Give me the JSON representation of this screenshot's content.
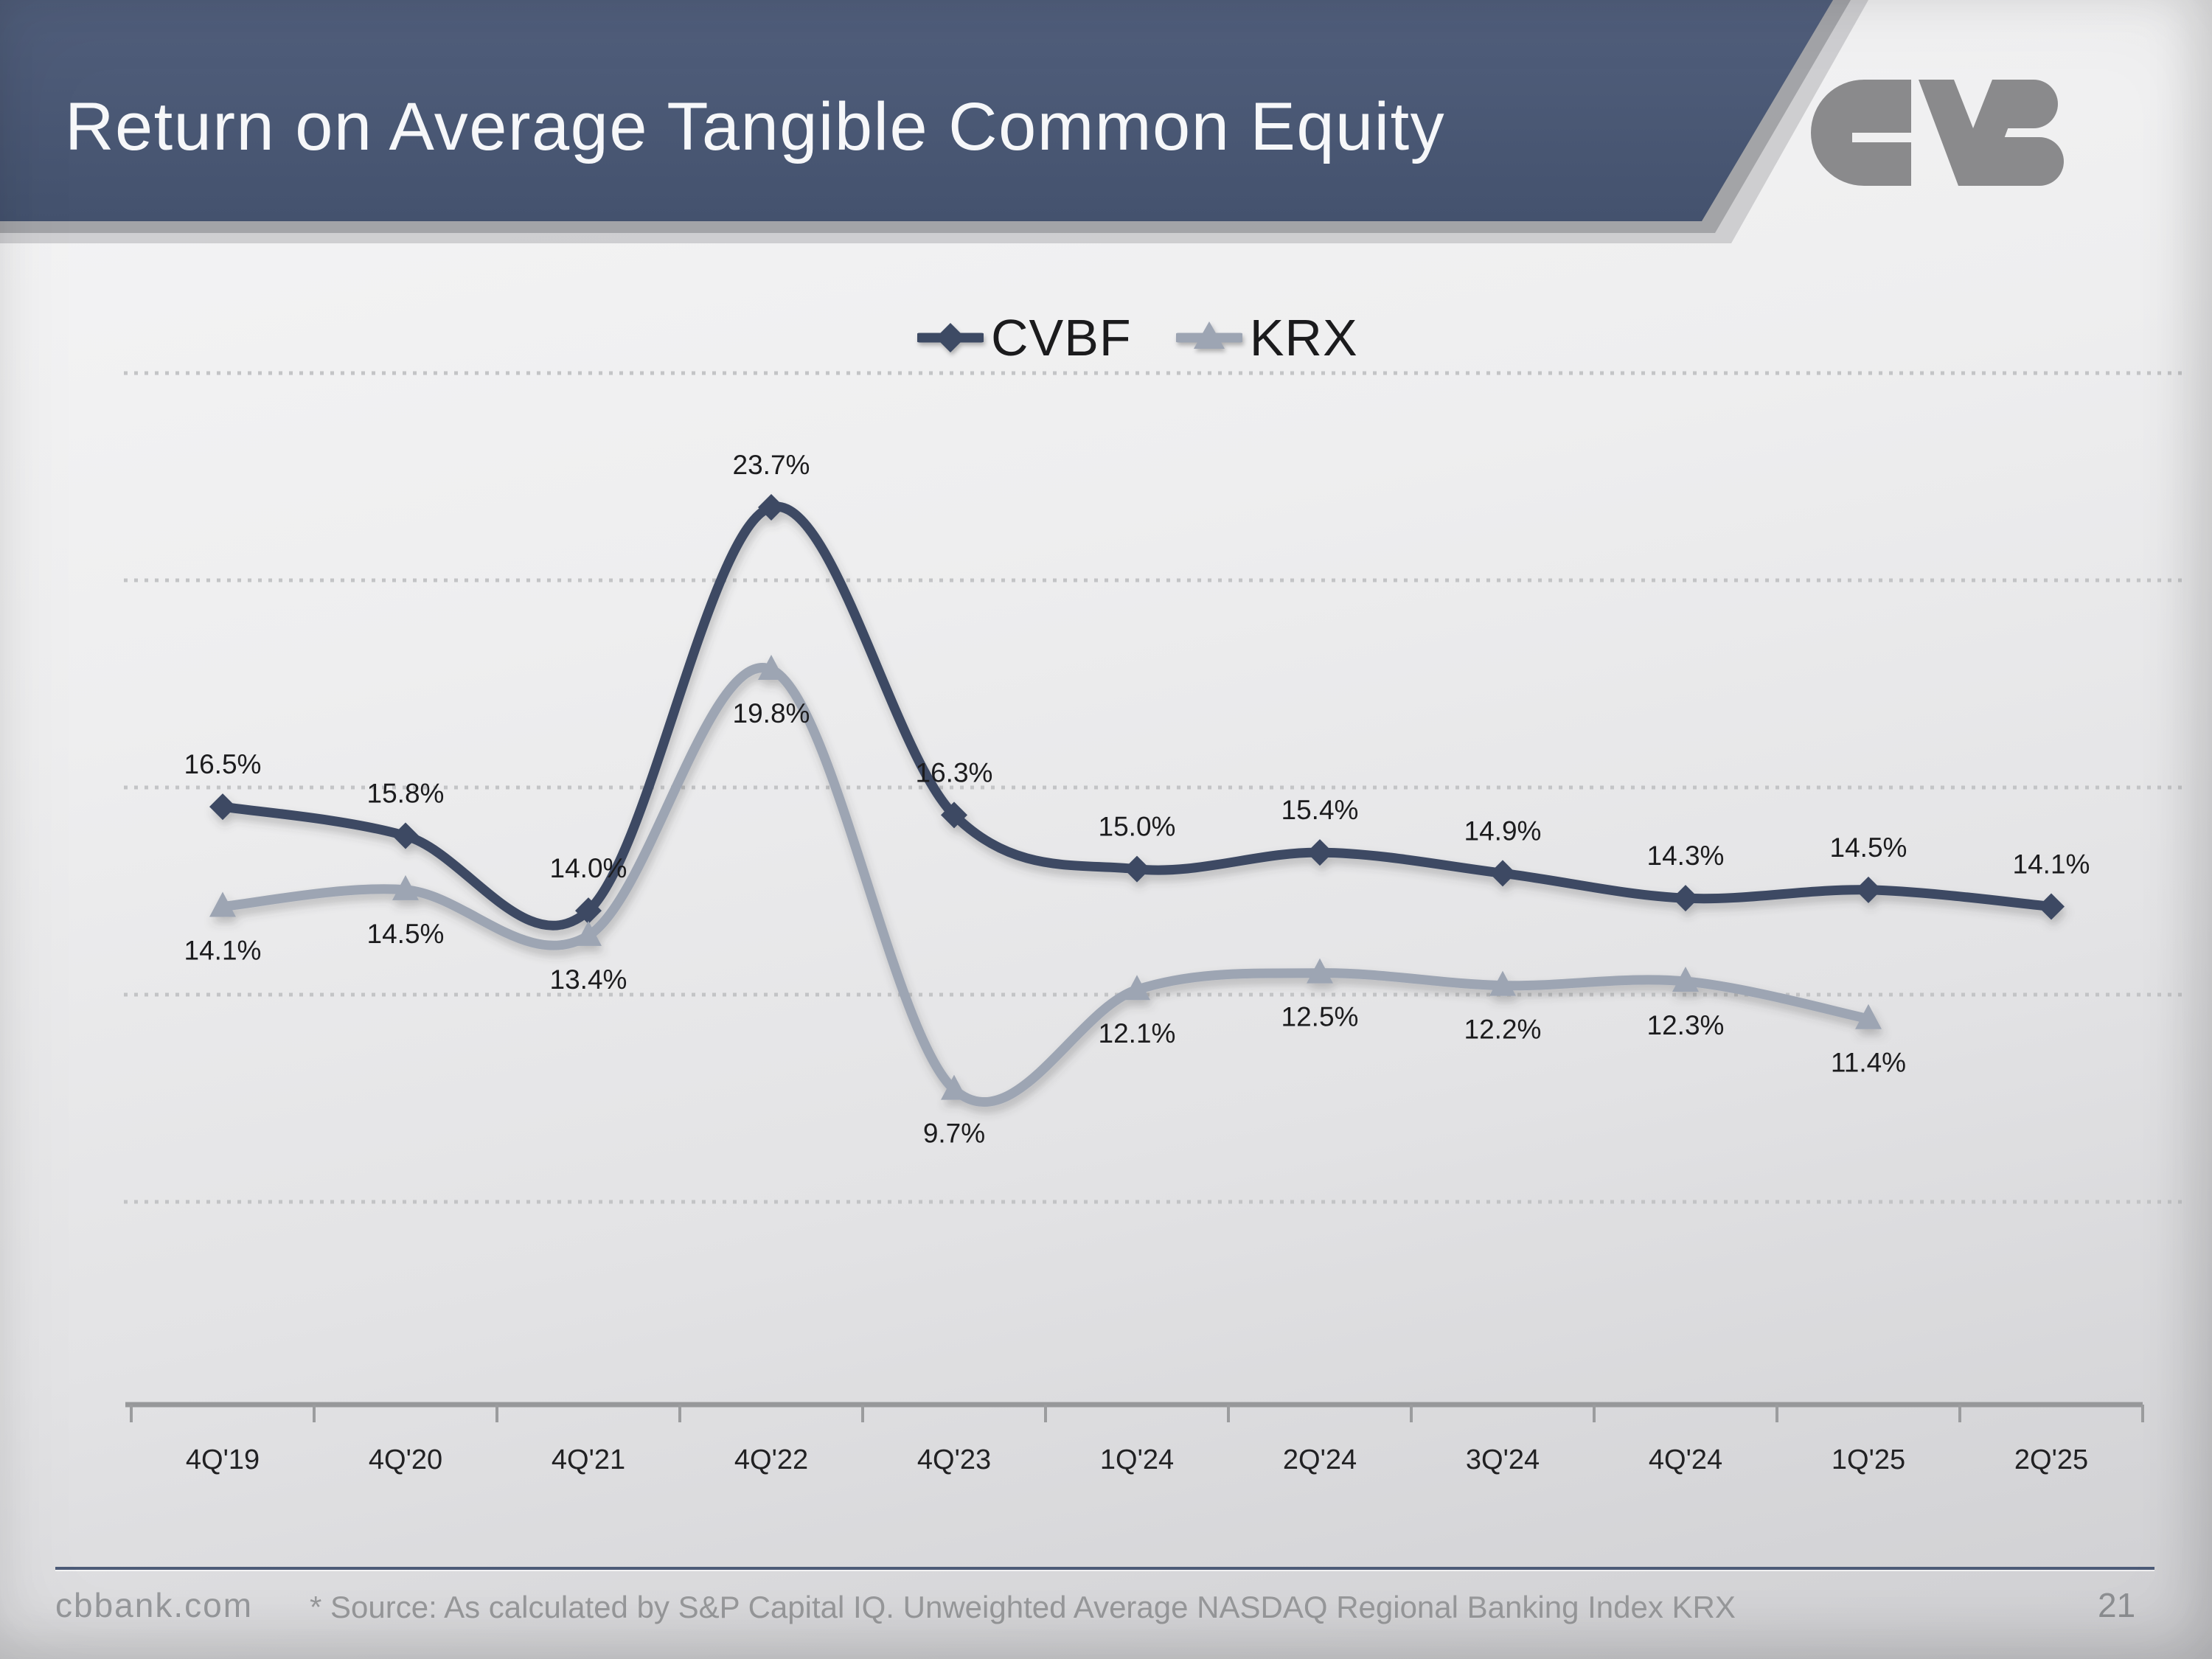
{
  "header": {
    "title": "Return on Average Tangible Common Equity"
  },
  "logo": {
    "name": "cvb-monogram",
    "color": "#8a8a8c"
  },
  "chart_data": {
    "type": "line",
    "title": "Return on Average Tangible Common Equity",
    "categories": [
      "4Q'19",
      "4Q'20",
      "4Q'21",
      "4Q'22",
      "4Q'23",
      "1Q'24",
      "2Q'24",
      "3Q'24",
      "4Q'24",
      "1Q'25",
      "2Q'25"
    ],
    "series": [
      {
        "name": "CVBF",
        "marker": "diamond",
        "color": "#3d4a64",
        "label_position": "above",
        "values": [
          16.5,
          15.8,
          14.0,
          23.7,
          16.3,
          15.0,
          15.4,
          14.9,
          14.3,
          14.5,
          14.1
        ],
        "labels": [
          "16.5%",
          "15.8%",
          "14.0%",
          "23.7%",
          "16.3%",
          "15.0%",
          "15.4%",
          "14.9%",
          "14.3%",
          "14.5%",
          "14.1%"
        ]
      },
      {
        "name": "KRX",
        "marker": "triangle",
        "color": "#9da5b3",
        "label_position": "below",
        "values": [
          14.1,
          14.5,
          13.4,
          19.8,
          9.7,
          12.1,
          12.5,
          12.2,
          12.3,
          11.4,
          null
        ],
        "labels": [
          "14.1%",
          "14.5%",
          "13.4%",
          "19.8%",
          "9.7%",
          "12.1%",
          "12.5%",
          "12.2%",
          "12.3%",
          "11.4%",
          null
        ]
      }
    ],
    "smoothed": true,
    "grid": {
      "horizontal_dotted": true,
      "gridline_count": 5
    },
    "legend_position": "top-center",
    "x_axis": {
      "labels_visible": true
    },
    "y_axis": {
      "labels_visible": false,
      "approx_range_pct": [
        2,
        27
      ],
      "gridline_step_pct": 5
    }
  },
  "footer": {
    "website": "cbbank.com",
    "source_note": "* Source: As calculated by S&P Capital IQ. Unweighted Average NASDAQ Regional Banking Index KRX",
    "page_number": "21"
  }
}
